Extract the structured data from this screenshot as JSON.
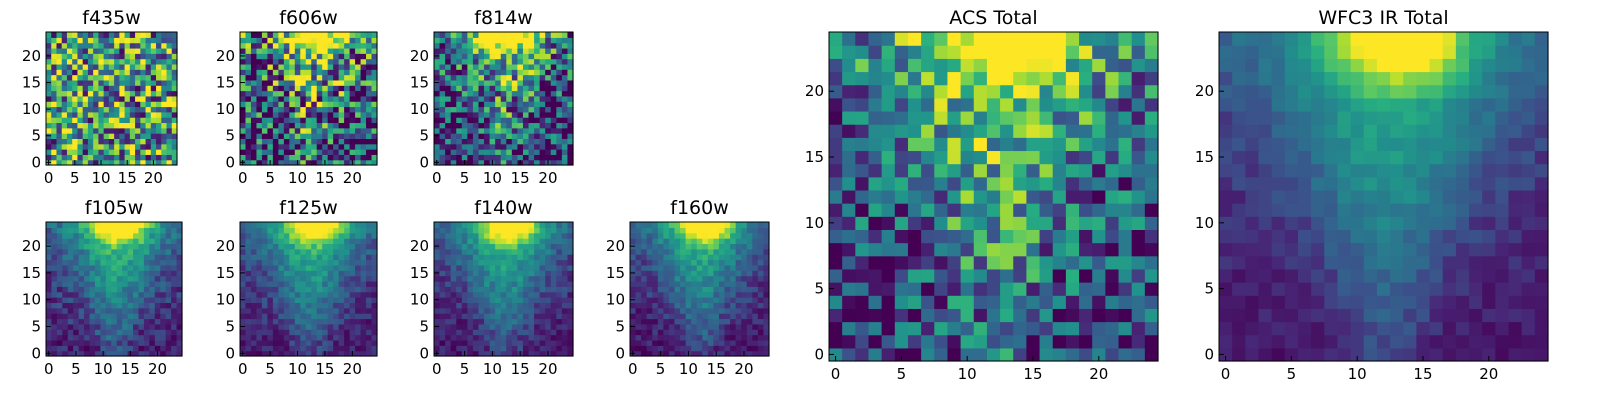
{
  "colors": {
    "colormap": "viridis",
    "background": "#ffffff",
    "axis": "#000000"
  },
  "chart_data": [
    {
      "type": "heatmap",
      "title": "f435w",
      "grid_size": 25,
      "xlim": [
        -0.5,
        24.5
      ],
      "ylim": [
        -0.5,
        24.5
      ],
      "xticks": [
        0,
        5,
        10,
        15,
        20
      ],
      "yticks": [
        0,
        5,
        10,
        15,
        20
      ],
      "pattern": "noise",
      "noise_level": 0.75,
      "base_level": 0.55
    },
    {
      "type": "heatmap",
      "title": "f606w",
      "grid_size": 25,
      "xlim": [
        -0.5,
        24.5
      ],
      "ylim": [
        -0.5,
        24.5
      ],
      "xticks": [
        0,
        5,
        10,
        15,
        20
      ],
      "yticks": [
        0,
        5,
        10,
        15,
        20
      ],
      "pattern": "noisy-v",
      "noise_level": 0.55,
      "base_level": 0.45
    },
    {
      "type": "heatmap",
      "title": "f814w",
      "grid_size": 25,
      "xlim": [
        -0.5,
        24.5
      ],
      "ylim": [
        -0.5,
        24.5
      ],
      "xticks": [
        0,
        5,
        10,
        15,
        20
      ],
      "yticks": [
        0,
        5,
        10,
        15,
        20
      ],
      "pattern": "noisy-v",
      "noise_level": 0.45,
      "base_level": 0.35
    },
    {
      "type": "heatmap",
      "title": "f105w",
      "grid_size": 25,
      "xlim": [
        -0.5,
        24.5
      ],
      "ylim": [
        -0.5,
        24.5
      ],
      "xticks": [
        0,
        5,
        10,
        15,
        20
      ],
      "yticks": [
        0,
        5,
        10,
        15,
        20
      ],
      "pattern": "v",
      "noise_level": 0.12,
      "base_level": 0.25
    },
    {
      "type": "heatmap",
      "title": "f125w",
      "grid_size": 25,
      "xlim": [
        -0.5,
        24.5
      ],
      "ylim": [
        -0.5,
        24.5
      ],
      "xticks": [
        0,
        5,
        10,
        15,
        20
      ],
      "yticks": [
        0,
        5,
        10,
        15,
        20
      ],
      "pattern": "v",
      "noise_level": 0.1,
      "base_level": 0.22
    },
    {
      "type": "heatmap",
      "title": "f140w",
      "grid_size": 25,
      "xlim": [
        -0.5,
        24.5
      ],
      "ylim": [
        -0.5,
        24.5
      ],
      "xticks": [
        0,
        5,
        10,
        15,
        20
      ],
      "yticks": [
        0,
        5,
        10,
        15,
        20
      ],
      "pattern": "v",
      "noise_level": 0.1,
      "base_level": 0.2
    },
    {
      "type": "heatmap",
      "title": "f160w",
      "grid_size": 25,
      "xlim": [
        -0.5,
        24.5
      ],
      "ylim": [
        -0.5,
        24.5
      ],
      "xticks": [
        0,
        5,
        10,
        15,
        20
      ],
      "yticks": [
        0,
        5,
        10,
        15,
        20
      ],
      "pattern": "v",
      "noise_level": 0.1,
      "base_level": 0.18
    },
    {
      "type": "heatmap",
      "title": "ACS Total",
      "grid_size": 25,
      "xlim": [
        -0.5,
        24.5
      ],
      "ylim": [
        -0.5,
        24.5
      ],
      "xticks": [
        0,
        5,
        10,
        15,
        20
      ],
      "yticks": [
        0,
        5,
        10,
        15,
        20
      ],
      "pattern": "noisy-v",
      "noise_level": 0.35,
      "base_level": 0.5
    },
    {
      "type": "heatmap",
      "title": "WFC3 IR Total",
      "grid_size": 25,
      "xlim": [
        -0.5,
        24.5
      ],
      "ylim": [
        -0.5,
        24.5
      ],
      "xticks": [
        0,
        5,
        10,
        15,
        20
      ],
      "yticks": [
        0,
        5,
        10,
        15,
        20
      ],
      "pattern": "v",
      "noise_level": 0.06,
      "base_level": 0.2
    }
  ]
}
